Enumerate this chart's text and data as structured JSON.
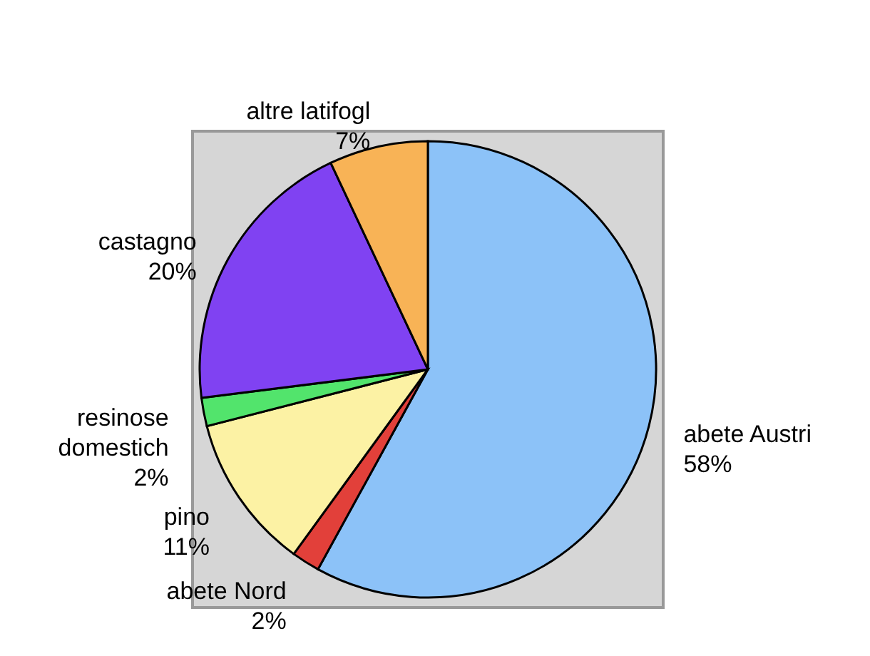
{
  "chart_data": {
    "type": "pie",
    "categories": [
      "abete Austri",
      "abete Nord",
      "pino",
      "resinose domestich",
      "castagno",
      "altre latifogl"
    ],
    "values": [
      58,
      2,
      11,
      2,
      20,
      7
    ],
    "value_labels": [
      "58%",
      "2%",
      "11%",
      "2%",
      "20%",
      "7%"
    ],
    "colors": [
      "#8cc2f8",
      "#e2403a",
      "#fcf2a4",
      "#52e46c",
      "#8042f2",
      "#f8b356"
    ],
    "legend": false
  }
}
